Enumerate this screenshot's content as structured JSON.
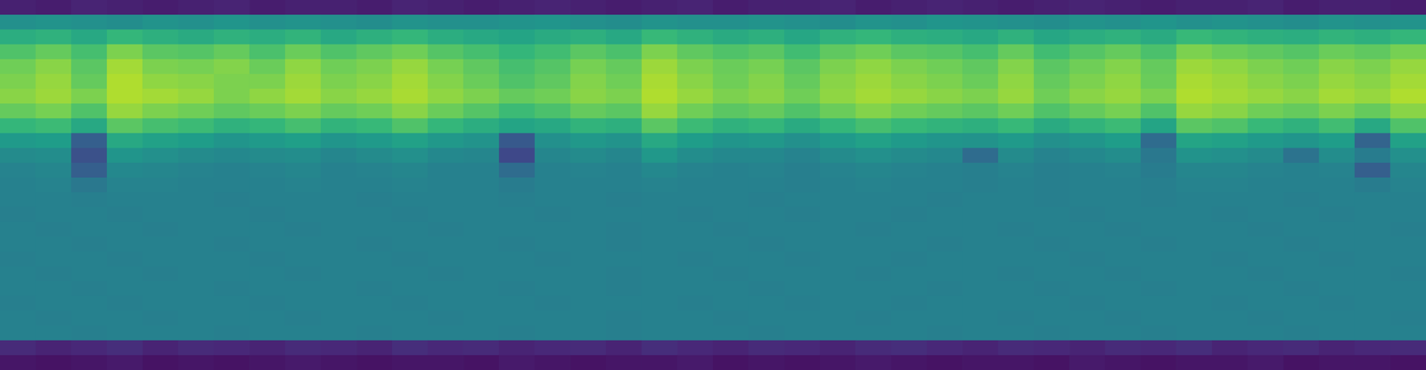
{
  "chart_data": {
    "type": "heatmap",
    "tick_labels": false,
    "grid": false,
    "zlim": [
      0,
      100
    ],
    "cells": [
      [
        9,
        8,
        10,
        9,
        8,
        9,
        10,
        8,
        9,
        9,
        8,
        10,
        9,
        8,
        9,
        10,
        9,
        8,
        9,
        10,
        8,
        9,
        9,
        10,
        8,
        9,
        10,
        9,
        8,
        9,
        10,
        9,
        8,
        9,
        9,
        10,
        8,
        9,
        9,
        8
      ],
      [
        50,
        51,
        50,
        49,
        51,
        50,
        52,
        50,
        51,
        50,
        49,
        51,
        50,
        50,
        51,
        52,
        50,
        49,
        51,
        50,
        50,
        51,
        50,
        49,
        51,
        50,
        52,
        51,
        50,
        49,
        51,
        50,
        52,
        50,
        51,
        50,
        49,
        51,
        50,
        51
      ],
      [
        62,
        64,
        60,
        66,
        63,
        61,
        64,
        62,
        65,
        60,
        63,
        66,
        62,
        60,
        58,
        61,
        63,
        60,
        67,
        64,
        61,
        63,
        59,
        64,
        66,
        63,
        62,
        60,
        64,
        59,
        62,
        64,
        61,
        67,
        65,
        63,
        62,
        65,
        63,
        66
      ],
      [
        72,
        76,
        70,
        80,
        74,
        73,
        76,
        71,
        77,
        72,
        75,
        78,
        73,
        70,
        66,
        69,
        74,
        71,
        80,
        75,
        72,
        74,
        69,
        75,
        78,
        74,
        73,
        70,
        76,
        69,
        73,
        76,
        71,
        80,
        77,
        75,
        73,
        77,
        75,
        79
      ],
      [
        78,
        82,
        74,
        86,
        80,
        79,
        81,
        77,
        83,
        78,
        80,
        84,
        79,
        75,
        70,
        73,
        79,
        76,
        85,
        80,
        77,
        79,
        74,
        80,
        83,
        80,
        78,
        75,
        81,
        74,
        78,
        81,
        76,
        85,
        83,
        80,
        78,
        82,
        80,
        84
      ],
      [
        80,
        84,
        76,
        88,
        83,
        82,
        80,
        80,
        85,
        80,
        82,
        86,
        81,
        77,
        72,
        75,
        81,
        78,
        87,
        82,
        78,
        81,
        76,
        82,
        85,
        82,
        80,
        77,
        83,
        76,
        80,
        83,
        77,
        87,
        85,
        82,
        80,
        84,
        82,
        86
      ],
      [
        82,
        85,
        80,
        88,
        86,
        84,
        80,
        83,
        86,
        82,
        84,
        87,
        83,
        80,
        76,
        78,
        82,
        80,
        88,
        84,
        80,
        82,
        78,
        83,
        86,
        84,
        82,
        80,
        84,
        78,
        82,
        84,
        80,
        88,
        86,
        84,
        82,
        86,
        84,
        88
      ],
      [
        76,
        79,
        72,
        84,
        80,
        78,
        75,
        77,
        80,
        76,
        78,
        82,
        77,
        73,
        68,
        71,
        76,
        74,
        84,
        78,
        74,
        76,
        72,
        77,
        81,
        78,
        76,
        74,
        78,
        72,
        76,
        79,
        72,
        84,
        82,
        78,
        76,
        80,
        76,
        82
      ],
      [
        66,
        68,
        60,
        74,
        70,
        68,
        64,
        66,
        70,
        65,
        67,
        72,
        66,
        62,
        58,
        60,
        65,
        63,
        74,
        68,
        64,
        66,
        61,
        66,
        70,
        67,
        65,
        63,
        67,
        61,
        65,
        68,
        58,
        74,
        72,
        67,
        64,
        69,
        60,
        72
      ],
      [
        54,
        55,
        30,
        60,
        57,
        55,
        52,
        54,
        56,
        52,
        54,
        57,
        53,
        51,
        28,
        50,
        53,
        51,
        60,
        55,
        52,
        53,
        50,
        54,
        57,
        54,
        52,
        51,
        54,
        50,
        52,
        55,
        35,
        58,
        57,
        54,
        52,
        55,
        32,
        57
      ],
      [
        48,
        49,
        25,
        52,
        50,
        48,
        47,
        48,
        49,
        46,
        48,
        50,
        47,
        46,
        22,
        46,
        48,
        46,
        53,
        49,
        47,
        47,
        45,
        48,
        50,
        48,
        47,
        35,
        48,
        45,
        47,
        49,
        40,
        51,
        50,
        48,
        38,
        49,
        42,
        50
      ],
      [
        45,
        46,
        30,
        47,
        46,
        45,
        44,
        45,
        46,
        44,
        45,
        46,
        44,
        44,
        35,
        44,
        45,
        44,
        47,
        45,
        44,
        45,
        43,
        45,
        46,
        45,
        44,
        43,
        45,
        43,
        44,
        45,
        42,
        46,
        46,
        45,
        44,
        45,
        30,
        46
      ],
      [
        44,
        45,
        40,
        45,
        45,
        44,
        44,
        44,
        45,
        44,
        44,
        45,
        44,
        44,
        42,
        44,
        44,
        44,
        45,
        44,
        44,
        44,
        43,
        44,
        45,
        44,
        44,
        43,
        44,
        43,
        44,
        44,
        43,
        45,
        45,
        44,
        44,
        44,
        42,
        45
      ],
      [
        44,
        44,
        43,
        44,
        44,
        44,
        43,
        44,
        44,
        44,
        43,
        44,
        44,
        44,
        43,
        44,
        44,
        43,
        44,
        44,
        44,
        43,
        44,
        44,
        44,
        44,
        43,
        44,
        44,
        43,
        44,
        44,
        43,
        44,
        44,
        44,
        43,
        44,
        44,
        44
      ],
      [
        43,
        44,
        44,
        43,
        44,
        44,
        44,
        43,
        44,
        44,
        44,
        43,
        44,
        44,
        44,
        43,
        44,
        44,
        44,
        43,
        44,
        44,
        43,
        44,
        44,
        43,
        44,
        44,
        44,
        44,
        43,
        44,
        44,
        44,
        43,
        44,
        44,
        43,
        44,
        44
      ],
      [
        44,
        43,
        44,
        44,
        43,
        44,
        44,
        44,
        43,
        44,
        44,
        44,
        43,
        44,
        44,
        44,
        44,
        43,
        44,
        44,
        43,
        44,
        44,
        44,
        43,
        44,
        44,
        44,
        43,
        44,
        44,
        43,
        44,
        44,
        44,
        43,
        44,
        44,
        44,
        43
      ],
      [
        44,
        44,
        43,
        44,
        44,
        44,
        43,
        44,
        44,
        44,
        43,
        44,
        44,
        44,
        43,
        44,
        44,
        43,
        44,
        44,
        44,
        43,
        44,
        44,
        44,
        44,
        43,
        44,
        44,
        43,
        44,
        44,
        43,
        44,
        44,
        44,
        43,
        44,
        44,
        44
      ],
      [
        43,
        44,
        44,
        43,
        44,
        44,
        44,
        43,
        44,
        44,
        44,
        43,
        44,
        44,
        44,
        43,
        44,
        44,
        44,
        43,
        44,
        44,
        43,
        44,
        44,
        43,
        44,
        44,
        44,
        44,
        43,
        44,
        44,
        44,
        43,
        44,
        44,
        43,
        44,
        44
      ],
      [
        44,
        43,
        44,
        44,
        43,
        44,
        44,
        44,
        43,
        44,
        44,
        44,
        43,
        44,
        44,
        44,
        44,
        43,
        44,
        44,
        43,
        44,
        44,
        44,
        43,
        44,
        44,
        44,
        43,
        44,
        44,
        43,
        44,
        44,
        44,
        43,
        44,
        44,
        44,
        43
      ],
      [
        44,
        44,
        43,
        44,
        44,
        44,
        43,
        44,
        44,
        44,
        43,
        44,
        44,
        44,
        43,
        44,
        44,
        43,
        44,
        44,
        44,
        43,
        44,
        44,
        44,
        44,
        43,
        44,
        44,
        43,
        44,
        44,
        43,
        44,
        44,
        44,
        43,
        44,
        44,
        44
      ],
      [
        43,
        44,
        44,
        43,
        44,
        44,
        44,
        43,
        44,
        44,
        44,
        43,
        44,
        44,
        44,
        43,
        44,
        44,
        44,
        43,
        44,
        44,
        43,
        44,
        44,
        43,
        44,
        44,
        44,
        44,
        43,
        44,
        44,
        44,
        43,
        44,
        44,
        43,
        44,
        44
      ],
      [
        44,
        43,
        44,
        44,
        43,
        44,
        44,
        44,
        43,
        44,
        44,
        44,
        43,
        44,
        44,
        44,
        44,
        43,
        44,
        44,
        43,
        44,
        44,
        44,
        43,
        44,
        44,
        44,
        43,
        44,
        44,
        43,
        44,
        44,
        44,
        43,
        44,
        44,
        44,
        43
      ],
      [
        44,
        44,
        43,
        44,
        44,
        44,
        43,
        44,
        44,
        44,
        43,
        44,
        44,
        44,
        43,
        44,
        44,
        43,
        44,
        44,
        44,
        43,
        44,
        44,
        44,
        44,
        43,
        44,
        44,
        43,
        44,
        44,
        43,
        44,
        44,
        44,
        43,
        44,
        44,
        44
      ],
      [
        12,
        10,
        11,
        13,
        10,
        12,
        11,
        10,
        12,
        11,
        10,
        13,
        11,
        12,
        10,
        11,
        12,
        10,
        13,
        11,
        10,
        12,
        11,
        10,
        12,
        13,
        11,
        10,
        12,
        11,
        10,
        12,
        11,
        13,
        10,
        11,
        12,
        10,
        11,
        12
      ],
      [
        6,
        5,
        6,
        7,
        5,
        6,
        5,
        6,
        7,
        6,
        5,
        6,
        6,
        5,
        7,
        6,
        5,
        6,
        6,
        7,
        5,
        6,
        5,
        6,
        7,
        6,
        5,
        6,
        6,
        5,
        7,
        6,
        5,
        6,
        6,
        7,
        5,
        6,
        6,
        5
      ]
    ]
  }
}
